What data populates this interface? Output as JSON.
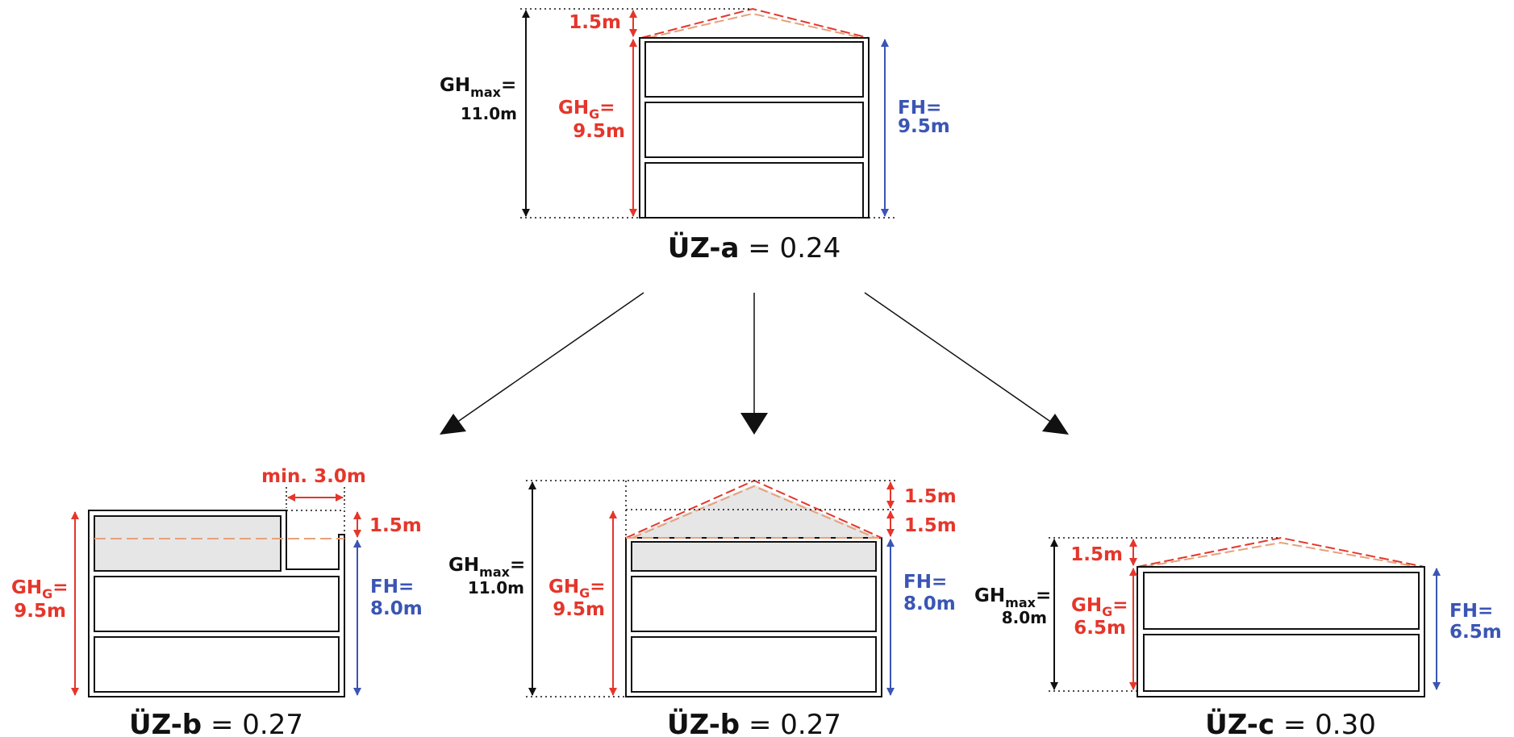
{
  "colors": {
    "red": "#e5362b",
    "blue": "#3a55b4",
    "black": "#111111",
    "dash": "#e8a07a",
    "fill": "#e6e6e6"
  },
  "top": {
    "caption_bold": "ÜZ-a",
    "caption_rest": " = 0.24",
    "ghmax_main": "GH",
    "ghmax_sub": "max",
    "ghmax_eq": "=",
    "ghmax_val": "11.0m",
    "roof": "1.5m",
    "ghg_main": "GH",
    "ghg_sub": "G",
    "ghg_eq": "=",
    "ghg_val": "9.5m",
    "fh_label": "FH=",
    "fh_val": "9.5m"
  },
  "left": {
    "caption_bold": "ÜZ-b",
    "caption_rest": " = 0.27",
    "min_label": "min. 3.0m",
    "roof": "1.5m",
    "ghg_main": "GH",
    "ghg_sub": "G",
    "ghg_eq": "=",
    "ghg_val": "9.5m",
    "fh_label": "FH=",
    "fh_val": "8.0m"
  },
  "middle": {
    "caption_bold": "ÜZ-b",
    "caption_rest": " = 0.27",
    "roof1": "1.5m",
    "roof2": "1.5m",
    "ghmax_main": "GH",
    "ghmax_sub": "max",
    "ghmax_eq": "=",
    "ghmax_val": "11.0m",
    "ghg_main": "GH",
    "ghg_sub": "G",
    "ghg_eq": "=",
    "ghg_val": "9.5m",
    "fh_label": "FH=",
    "fh_val": "8.0m"
  },
  "right": {
    "caption_bold": "ÜZ-c",
    "caption_rest": " = 0.30",
    "roof": "1.5m",
    "ghmax_main": "GH",
    "ghmax_sub": "max",
    "ghmax_eq": "=",
    "ghmax_val": "8.0m",
    "ghg_main": "GH",
    "ghg_sub": "G",
    "ghg_eq": "=",
    "ghg_val": "6.5m",
    "fh_label": "FH=",
    "fh_val": "6.5m"
  }
}
